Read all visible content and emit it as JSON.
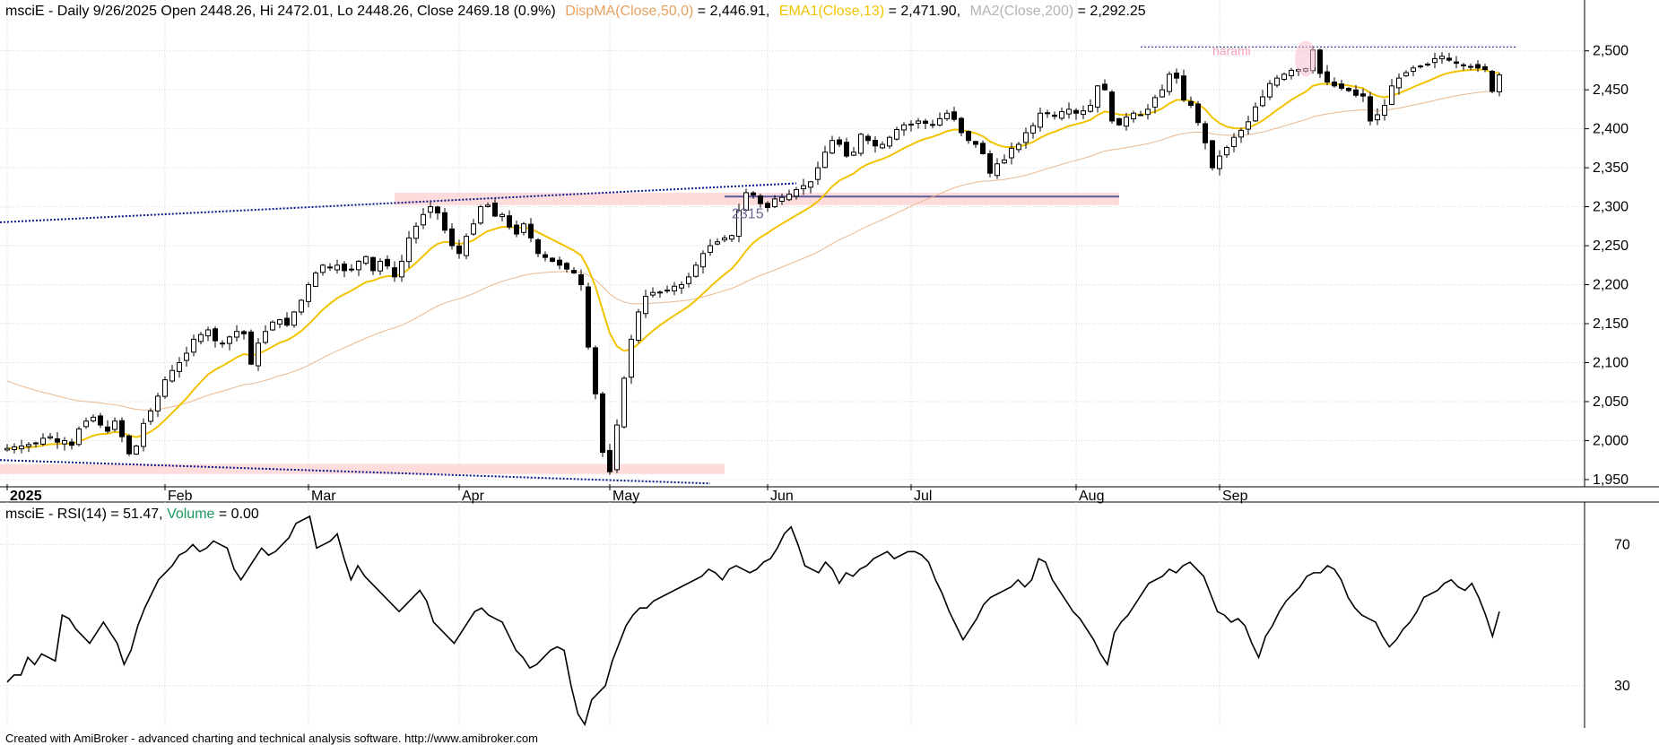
{
  "colors": {
    "candle": "#000000",
    "ema13": "#f2c300",
    "dispma": "#e8a060",
    "ma200": "#b4b4b4",
    "support_zone": "#ffd8d8",
    "trendline": "#0a1a8c",
    "level_line": "#5a5a9a",
    "harami": "#e85c8c",
    "grid": "#cfcfcf",
    "volume_label": "#1a9a5a"
  },
  "price_panel": {
    "title_prefix": "msciE - Daily 9/26/2025 Open 2448.26, Hi 2472.01, Lo 2448.26, Close 2469.18 (0.9%)",
    "dispma_label": "DispMA(Close,50,0)",
    "dispma_value": " = 2,446.91,",
    "ema_label": "EMA1(Close,13)",
    "ema_value": " = 2,471.90,",
    "ma_label": "MA2(Close,200)",
    "ma_value": " = 2,292.25",
    "annotation_level": "2315",
    "annotation_pattern": "harami"
  },
  "rsi_panel": {
    "title": "msciE - RSI(14) = 51.47, ",
    "volume_label": "Volume",
    "volume_value": " = 0.00"
  },
  "footer": "Created with AmiBroker - advanced charting and technical analysis software. http://www.amibroker.com",
  "chart_data": [
    {
      "type": "candlestick",
      "title": "msciE - Daily 9/26/2025 Open 2448.26, Hi 2472.01, Lo 2448.26, Close 2469.18 (0.9%)",
      "x_ticks": [
        "2025",
        "Feb",
        "Mar",
        "Apr",
        "May",
        "Jun",
        "Jul",
        "Aug",
        "Sep"
      ],
      "x_tick_index": [
        0,
        22,
        42,
        63,
        84,
        106,
        126,
        149,
        169
      ],
      "y_ticks": [
        "2,500",
        "2,450",
        "2,400",
        "2,350",
        "2,300",
        "2,250",
        "2,200",
        "2,150",
        "2,100",
        "2,050",
        "2,000",
        "1,950"
      ],
      "y_tick_values": [
        2500,
        2450,
        2400,
        2350,
        2300,
        2250,
        2200,
        2150,
        2100,
        2050,
        2000,
        1950
      ],
      "ylim": [
        1943,
        2533
      ],
      "grid": true,
      "close_series": [
        1990,
        1992,
        1993,
        1995,
        1997,
        2003,
        2005,
        1998,
        2000,
        1994,
        2015,
        2025,
        2030,
        2020,
        2012,
        2025,
        2005,
        1983,
        1993,
        2022,
        2038,
        2057,
        2078,
        2090,
        2100,
        2112,
        2130,
        2136,
        2142,
        2128,
        2125,
        2133,
        2140,
        2137,
        2098,
        2125,
        2140,
        2152,
        2155,
        2148,
        2165,
        2180,
        2200,
        2215,
        2225,
        2222,
        2225,
        2218,
        2220,
        2230,
        2236,
        2218,
        2230,
        2224,
        2210,
        2230,
        2260,
        2275,
        2290,
        2300,
        2292,
        2270,
        2250,
        2240,
        2262,
        2278,
        2300,
        2302,
        2288,
        2290,
        2274,
        2265,
        2278,
        2260,
        2240,
        2235,
        2230,
        2225,
        2220,
        2215,
        2200,
        2120,
        2060,
        1985,
        1960,
        2020,
        2080,
        2130,
        2165,
        2185,
        2190,
        2190,
        2193,
        2198,
        2200,
        2210,
        2225,
        2240,
        2250,
        2255,
        2260,
        2263,
        2295,
        2318,
        2315,
        2304,
        2299,
        2310,
        2312,
        2316,
        2322,
        2327,
        2332,
        2350,
        2370,
        2385,
        2380,
        2365,
        2370,
        2393,
        2385,
        2378,
        2380,
        2389,
        2399,
        2405,
        2406,
        2410,
        2407,
        2405,
        2413,
        2420,
        2412,
        2395,
        2385,
        2380,
        2368,
        2343,
        2355,
        2360,
        2375,
        2380,
        2395,
        2404,
        2420,
        2420,
        2416,
        2422,
        2425,
        2420,
        2423,
        2430,
        2455,
        2450,
        2410,
        2405,
        2415,
        2420,
        2418,
        2425,
        2440,
        2450,
        2470,
        2465,
        2437,
        2430,
        2408,
        2382,
        2350,
        2365,
        2376,
        2389,
        2398,
        2409,
        2428,
        2441,
        2458,
        2465,
        2470,
        2475,
        2476,
        2477,
        2501,
        2471,
        2460,
        2455,
        2452,
        2449,
        2443,
        2442,
        2410,
        2418,
        2430,
        2455,
        2465,
        2472,
        2478,
        2480,
        2483,
        2490,
        2493,
        2488,
        2484,
        2482,
        2480,
        2478,
        2476,
        2448,
        2469
      ],
      "series": [
        {
          "name": "DispMA(Close,50,0)"
        },
        {
          "name": "EMA1(Close,13)"
        },
        {
          "name": "MA2(Close,200)"
        }
      ]
    },
    {
      "type": "line",
      "title": "msciE - RSI(14) = 51.47",
      "y_ticks": [
        "70",
        "30"
      ],
      "y_tick_values": [
        70,
        30
      ],
      "ylim": [
        18,
        79
      ],
      "values": [
        31,
        33,
        33,
        38,
        36,
        39,
        38,
        37,
        50,
        49,
        46,
        44,
        42,
        45,
        48,
        45,
        42,
        36,
        40,
        47,
        52,
        56,
        60,
        62,
        64,
        67,
        68,
        70,
        68,
        69,
        71,
        70,
        69,
        63,
        60,
        63,
        66,
        69,
        67,
        68,
        70,
        72,
        76,
        77,
        78,
        69,
        70,
        71,
        73,
        66,
        60,
        64,
        61,
        59,
        57,
        55,
        53,
        51,
        53,
        55,
        57,
        54,
        48,
        46,
        44,
        42,
        45,
        48,
        51,
        52,
        50,
        49,
        48,
        44,
        40,
        38,
        35,
        36,
        38,
        40,
        41,
        40,
        30,
        22,
        19,
        26,
        28,
        30,
        37,
        42,
        47,
        50,
        52,
        52,
        54,
        55,
        56,
        57,
        58,
        59,
        60,
        61,
        63,
        62,
        60,
        63,
        64,
        63,
        62,
        63,
        65,
        66,
        69,
        73,
        75,
        70,
        64,
        63,
        62,
        65,
        63,
        59,
        62,
        61,
        63,
        64,
        66,
        67,
        68,
        66,
        67,
        68,
        68,
        67,
        65,
        60,
        56,
        51,
        47,
        43,
        46,
        49,
        53,
        55,
        56,
        57,
        58,
        60,
        58,
        60,
        66,
        65,
        60,
        57,
        54,
        51,
        49,
        46,
        43,
        39,
        36,
        45,
        48,
        50,
        53,
        56,
        59,
        60,
        61,
        63,
        62,
        64,
        65,
        63,
        61,
        56,
        51,
        50,
        48,
        49,
        47,
        42,
        38,
        44,
        47,
        51,
        54,
        56,
        58,
        61,
        62,
        62,
        64,
        63,
        60,
        55,
        52,
        50,
        49,
        48,
        44,
        41,
        43,
        46,
        48,
        51,
        55,
        56,
        57,
        59,
        60,
        58,
        57,
        59,
        55,
        50,
        44,
        51
      ],
      "series": [
        {
          "name": "msciE - RSI(14)"
        }
      ]
    }
  ]
}
